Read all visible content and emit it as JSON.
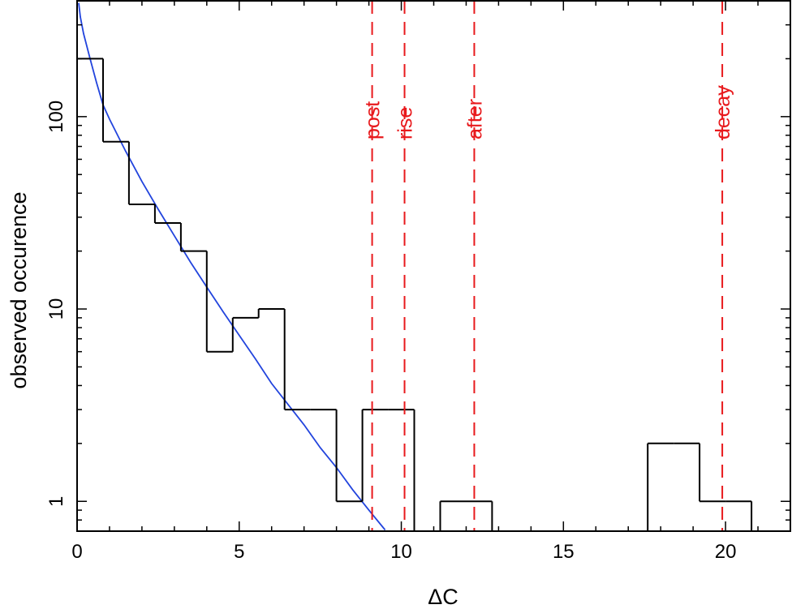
{
  "chart_data": {
    "type": "histogram",
    "title": "",
    "xlabel": "ΔC",
    "ylabel": "observed occurence",
    "xlim": [
      0,
      22
    ],
    "ylim": [
      0.7,
      400
    ],
    "y_scale": "log",
    "x_ticks": [
      0,
      5,
      10,
      15,
      20
    ],
    "x_tick_labels": [
      "0",
      "5",
      "10",
      "15",
      "20"
    ],
    "y_ticks": [
      1,
      10,
      100
    ],
    "y_tick_labels": [
      "1",
      "10",
      "100"
    ],
    "grid": false,
    "histogram": {
      "color": "#000000",
      "bin_edges": [
        0,
        0.8,
        1.6,
        2.4,
        3.2,
        4.0,
        4.8,
        5.6,
        6.4,
        7.2,
        8.0,
        8.8,
        9.6,
        10.4,
        11.2,
        12.0,
        12.8,
        13.6,
        14.4,
        15.2,
        16.0,
        16.8,
        17.6,
        18.4,
        19.2,
        20.0,
        20.8
      ],
      "counts": [
        200,
        74,
        35,
        28,
        20,
        6,
        9,
        10,
        3,
        3,
        1,
        3,
        3,
        0,
        1,
        1,
        0,
        0,
        0,
        0,
        0,
        0,
        2,
        2,
        1,
        1
      ]
    },
    "fit_curve": {
      "color": "#2244dd",
      "x": [
        0.05,
        0.1,
        0.2,
        0.4,
        0.6,
        0.8,
        1.0,
        1.5,
        2.0,
        2.5,
        3.0,
        3.5,
        4.0,
        4.5,
        5.0,
        5.5,
        6.0,
        6.5,
        7.0,
        7.5,
        8.0,
        8.5,
        9.0,
        9.5
      ],
      "y": [
        390,
        330,
        270,
        200,
        150,
        115,
        97,
        66,
        46,
        33,
        24,
        17.5,
        13,
        9.7,
        7.3,
        5.5,
        4.1,
        3.2,
        2.5,
        1.9,
        1.5,
        1.15,
        0.9,
        0.71
      ]
    },
    "markers": {
      "color": "#e8191c",
      "items": [
        {
          "label": "post",
          "x": 9.1
        },
        {
          "label": "rise",
          "x": 10.1
        },
        {
          "label": "after",
          "x": 12.25
        },
        {
          "label": "decay",
          "x": 19.9
        }
      ]
    }
  }
}
